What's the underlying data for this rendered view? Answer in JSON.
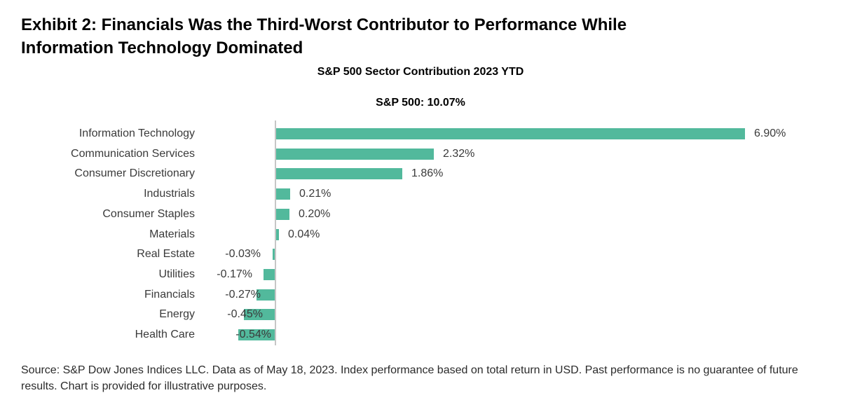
{
  "header": {
    "line1": "Exhibit 2: Financials Was the Third-Worst Contributor to Performance While",
    "line2": "Information Technology Dominated"
  },
  "chart_data": {
    "type": "bar",
    "orientation": "horizontal",
    "title": "S&P 500 Sector Contribution 2023 YTD",
    "subtitle": "S&P 500: 10.07%",
    "categories": [
      "Information Technology",
      "Communication Services",
      "Consumer Discretionary",
      "Industrials",
      "Consumer Staples",
      "Materials",
      "Real Estate",
      "Utilities",
      "Financials",
      "Energy",
      "Health Care"
    ],
    "values": [
      6.9,
      2.32,
      1.86,
      0.21,
      0.2,
      0.04,
      -0.03,
      -0.17,
      -0.27,
      -0.45,
      -0.54
    ],
    "value_labels": [
      "6.90%",
      "2.32%",
      "1.86%",
      "0.21%",
      "0.20%",
      "0.04%",
      "-0.03%",
      "-0.17%",
      "-0.27%",
      "-0.45%",
      "-0.54%"
    ],
    "bar_color": "#52B99C",
    "axis_color": "#C6C6C6",
    "grid": false,
    "legend": "none",
    "xlim_implied": [
      -0.54,
      6.9
    ]
  },
  "footer": {
    "source": "Source: S&P Dow Jones Indices LLC. Data as of May 18, 2023. Index performance based on total return in USD. Past performance is no guarantee of future results. Chart is provided for illustrative purposes."
  }
}
